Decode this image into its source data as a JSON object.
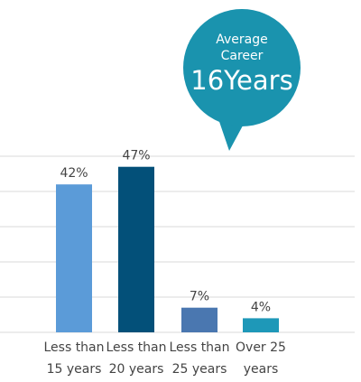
{
  "chart_data": {
    "type": "bar",
    "categories": [
      "Less than 15 years",
      "Less than 20 years",
      "Less than 25 years",
      "Over 25 years"
    ],
    "values": [
      42,
      47,
      7,
      4
    ],
    "value_labels": [
      "42%",
      "47%",
      "7%",
      "4%"
    ],
    "colors": [
      "#5b9bd8",
      "#035079",
      "#4a77b0",
      "#1e98b8"
    ],
    "ylim": [
      0,
      50
    ],
    "yticks": [
      0,
      10,
      20,
      30,
      40,
      50
    ],
    "grid": true,
    "annotation": {
      "caption": "Average Career",
      "value": "16Years",
      "color": "#1a93ae"
    }
  }
}
